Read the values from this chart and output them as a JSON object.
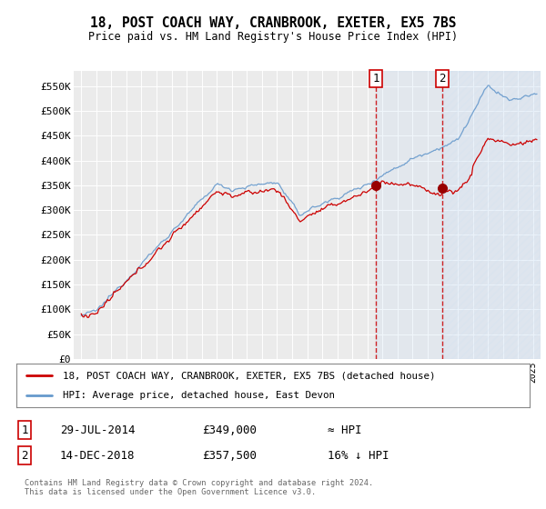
{
  "title": "18, POST COACH WAY, CRANBROOK, EXETER, EX5 7BS",
  "subtitle": "Price paid vs. HM Land Registry's House Price Index (HPI)",
  "hpi_color": "#6699cc",
  "price_color": "#cc0000",
  "marker_color": "#990000",
  "background_color": "#ffffff",
  "plot_bg_color": "#f0f0f0",
  "vline_color": "#cc0000",
  "shade_color": "#ddeeff",
  "ylim": [
    0,
    580000
  ],
  "yticks": [
    0,
    50000,
    100000,
    150000,
    200000,
    250000,
    300000,
    350000,
    400000,
    450000,
    500000,
    550000
  ],
  "ytick_labels": [
    "£0",
    "£50K",
    "£100K",
    "£150K",
    "£200K",
    "£250K",
    "£300K",
    "£350K",
    "£400K",
    "£450K",
    "£500K",
    "£550K"
  ],
  "xlim_start": 1994.5,
  "xlim_end": 2025.5,
  "purchase1_x": 2014.578,
  "purchase1_y": 349000,
  "purchase2_x": 2018.959,
  "purchase2_y": 357500,
  "legend_line1": "18, POST COACH WAY, CRANBROOK, EXETER, EX5 7BS (detached house)",
  "legend_line2": "HPI: Average price, detached house, East Devon",
  "purchase1_date": "29-JUL-2014",
  "purchase1_price": "£349,000",
  "purchase1_note": "≈ HPI",
  "purchase2_date": "14-DEC-2018",
  "purchase2_price": "£357,500",
  "purchase2_note": "16% ↓ HPI",
  "footer": "Contains HM Land Registry data © Crown copyright and database right 2024.\nThis data is licensed under the Open Government Licence v3.0."
}
